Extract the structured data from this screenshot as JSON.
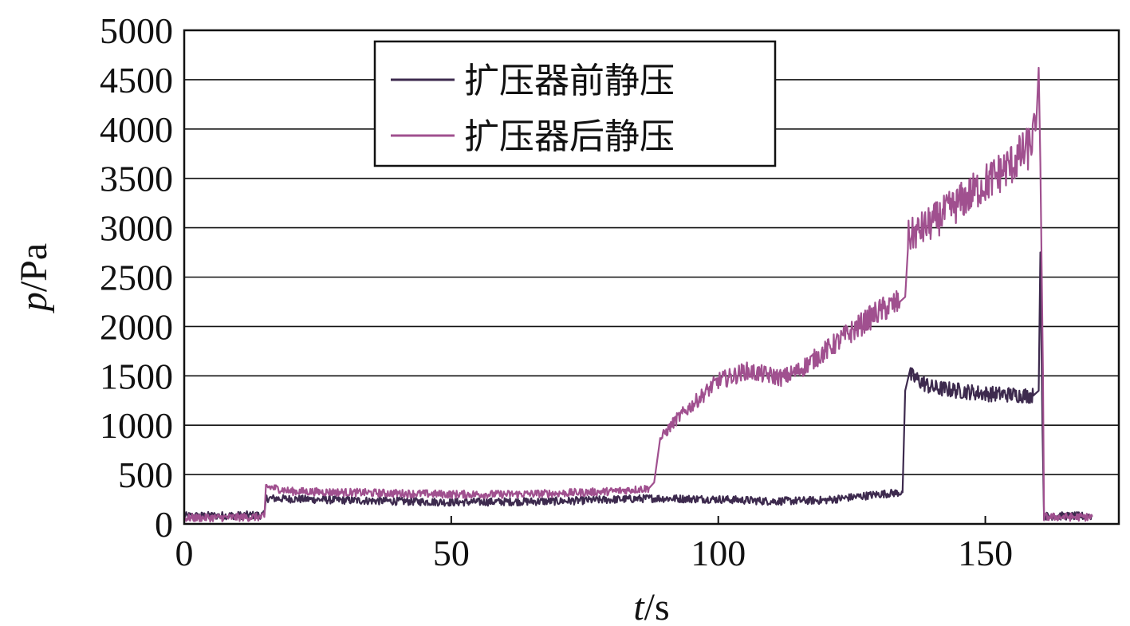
{
  "chart_data": {
    "type": "line",
    "xlabel_var": "t",
    "xlabel_unit": "/s",
    "ylabel_var": "p",
    "ylabel_unit": "/Pa",
    "xlim": [
      0,
      175
    ],
    "ylim": [
      0,
      5000
    ],
    "x_ticks": [
      0,
      50,
      100,
      150
    ],
    "y_ticks": [
      0,
      500,
      1000,
      1500,
      2000,
      2500,
      3000,
      3500,
      4000,
      4500,
      5000
    ],
    "grid": "horizontal",
    "legend_position": "top-center",
    "series": [
      {
        "name": "扩压器前静压",
        "color": "#3d2a4e",
        "x": [
          0,
          15,
          15.3,
          30,
          50,
          70,
          88,
          100,
          110,
          120,
          130,
          134.5,
          135,
          136,
          140,
          150,
          159,
          160,
          160.3,
          160.7,
          161,
          165,
          170
        ],
        "y": [
          80,
          90,
          260,
          240,
          220,
          230,
          260,
          250,
          230,
          240,
          300,
          320,
          1350,
          1500,
          1380,
          1320,
          1300,
          1350,
          2750,
          1000,
          80,
          80,
          80
        ]
      },
      {
        "name": "扩压器后静压",
        "color": "#a0508f",
        "x": [
          0,
          15,
          15.3,
          20,
          30,
          40,
          50,
          60,
          70,
          80,
          87,
          88,
          89,
          92,
          95,
          100,
          103,
          105,
          110,
          112,
          115,
          120,
          125,
          130,
          134,
          135,
          135.5,
          140,
          145,
          150,
          155,
          158,
          159.5,
          160,
          160.3,
          160.8,
          161,
          165,
          170
        ],
        "y": [
          60,
          70,
          380,
          330,
          320,
          310,
          300,
          300,
          310,
          330,
          360,
          420,
          850,
          1050,
          1200,
          1450,
          1500,
          1550,
          1500,
          1480,
          1550,
          1750,
          1950,
          2150,
          2250,
          2300,
          2900,
          3050,
          3250,
          3450,
          3650,
          3800,
          4000,
          4620,
          3650,
          1500,
          70,
          70,
          70
        ]
      }
    ]
  }
}
